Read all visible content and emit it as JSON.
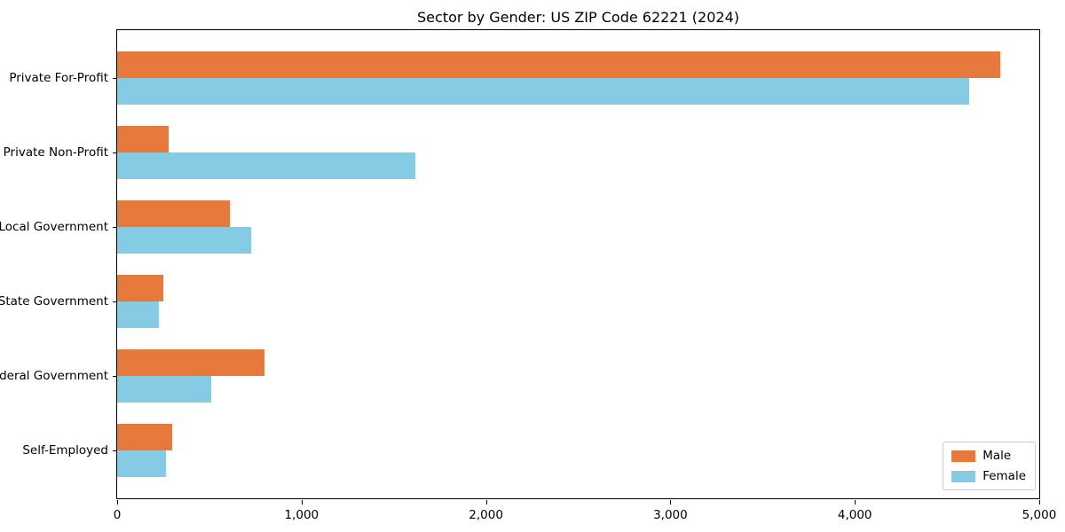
{
  "chart_data": {
    "type": "bar",
    "orientation": "horizontal",
    "title": "Sector by Gender: US ZIP Code 62221 (2024)",
    "xlabel": "",
    "ylabel": "",
    "categories": [
      "Private For-Profit",
      "Private Non-Profit",
      "Local Government",
      "State Government",
      "Federal Government",
      "Self-Employed"
    ],
    "series": [
      {
        "name": "Male",
        "color": "#e8793d",
        "values": [
          4790,
          280,
          610,
          250,
          800,
          300
        ]
      },
      {
        "name": "Female",
        "color": "#85cbe4",
        "values": [
          4620,
          1615,
          725,
          225,
          510,
          265
        ]
      }
    ],
    "xlim": [
      0,
      5000
    ],
    "xticks": [
      {
        "value": 0,
        "label": "0"
      },
      {
        "value": 1000,
        "label": "1,000"
      },
      {
        "value": 2000,
        "label": "2,000"
      },
      {
        "value": 3000,
        "label": "3,000"
      },
      {
        "value": 4000,
        "label": "4,000"
      },
      {
        "value": 5000,
        "label": "5,000"
      }
    ],
    "grid": false,
    "legend_position": "lower right",
    "colors": {
      "male": "#e8793d",
      "female": "#85cbe4",
      "axis": "#000000",
      "legend_border": "#cccccc"
    }
  }
}
